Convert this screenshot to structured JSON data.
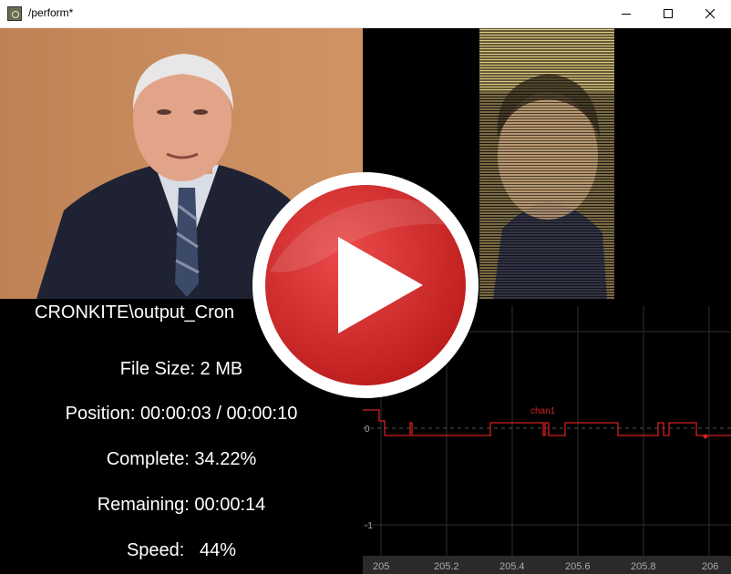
{
  "window": {
    "title": "/perform*"
  },
  "video": {
    "left_description_icon": "anchor-video-frame",
    "right_description_icon": "ascii-render-frame"
  },
  "info": {
    "filename": "CRONKITE\\output_Cron",
    "file_size": "File Size: 2 MB",
    "position": "Position: 00:00:03 / 00:00:10",
    "complete": "Complete: 34.22%",
    "remaining": "Remaining: 00:00:14",
    "speed": "Speed:   44%"
  },
  "graph": {
    "channel_label": "chan1",
    "y_ticks": [
      "0",
      "-1"
    ],
    "x_ticks": [
      "205",
      "205.2",
      "205.4",
      "205.6",
      "205.8",
      "206"
    ],
    "colors": {
      "line": "#d42020",
      "grid": "#2e2e2e",
      "axis_text": "#aaaaaa",
      "axis_band": "#2a2a2a"
    }
  },
  "overlay": {
    "icon": "play-button-icon",
    "colors": {
      "ring": "#ffffff",
      "fill": "#d42a2a",
      "triangle": "#ffffff"
    }
  }
}
